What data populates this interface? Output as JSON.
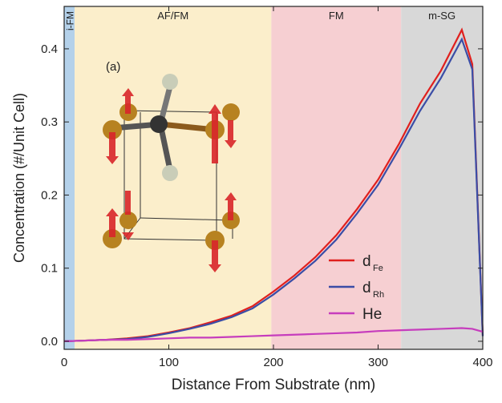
{
  "chart_data": {
    "type": "line",
    "xlabel": "Distance From Substrate (nm)",
    "ylabel": "Concentration (#/Unit Cell)",
    "inset_label": "(a)",
    "regions": [
      {
        "label": "i-FM",
        "start": 0,
        "end": 10,
        "color": "#b4d1ea"
      },
      {
        "label": "AF/FM",
        "start": 10,
        "end": 198,
        "color": "#fbeecb"
      },
      {
        "label": "FM",
        "start": 198,
        "end": 322,
        "color": "#f6cfd2"
      },
      {
        "label": "m-SG",
        "start": 322,
        "end": 400,
        "color": "#d8d8d8"
      }
    ],
    "x": [
      0,
      20,
      40,
      60,
      80,
      100,
      120,
      140,
      160,
      180,
      200,
      220,
      240,
      260,
      280,
      300,
      320,
      340,
      360,
      380,
      390,
      400
    ],
    "series": [
      {
        "name": "d",
        "subscript": "Fe",
        "color": "#e0201e",
        "values": [
          0.0,
          0.001,
          0.002,
          0.004,
          0.007,
          0.012,
          0.018,
          0.026,
          0.035,
          0.048,
          0.068,
          0.09,
          0.115,
          0.145,
          0.181,
          0.221,
          0.27,
          0.325,
          0.37,
          0.426,
          0.379,
          0.008
        ]
      },
      {
        "name": "d",
        "subscript": "Rh",
        "color": "#3b4da6",
        "values": [
          0.0,
          0.001,
          0.002,
          0.003,
          0.006,
          0.011,
          0.017,
          0.024,
          0.033,
          0.045,
          0.064,
          0.086,
          0.11,
          0.139,
          0.175,
          0.214,
          0.263,
          0.315,
          0.36,
          0.413,
          0.372,
          0.007
        ]
      },
      {
        "name": "He",
        "color": "#c63dbd",
        "values": [
          0.0,
          0.001,
          0.002,
          0.002,
          0.003,
          0.004,
          0.005,
          0.005,
          0.006,
          0.007,
          0.008,
          0.009,
          0.01,
          0.011,
          0.012,
          0.014,
          0.015,
          0.016,
          0.017,
          0.018,
          0.017,
          0.013
        ]
      }
    ],
    "xlim": [
      0,
      400
    ],
    "xticks": [
      0,
      100,
      200,
      300,
      400
    ],
    "ylim": [
      -0.011,
      0.458
    ],
    "yticks": [
      {
        "value": 0,
        "label": "0.0"
      },
      0.1,
      0.2,
      0.3,
      0.4
    ]
  }
}
